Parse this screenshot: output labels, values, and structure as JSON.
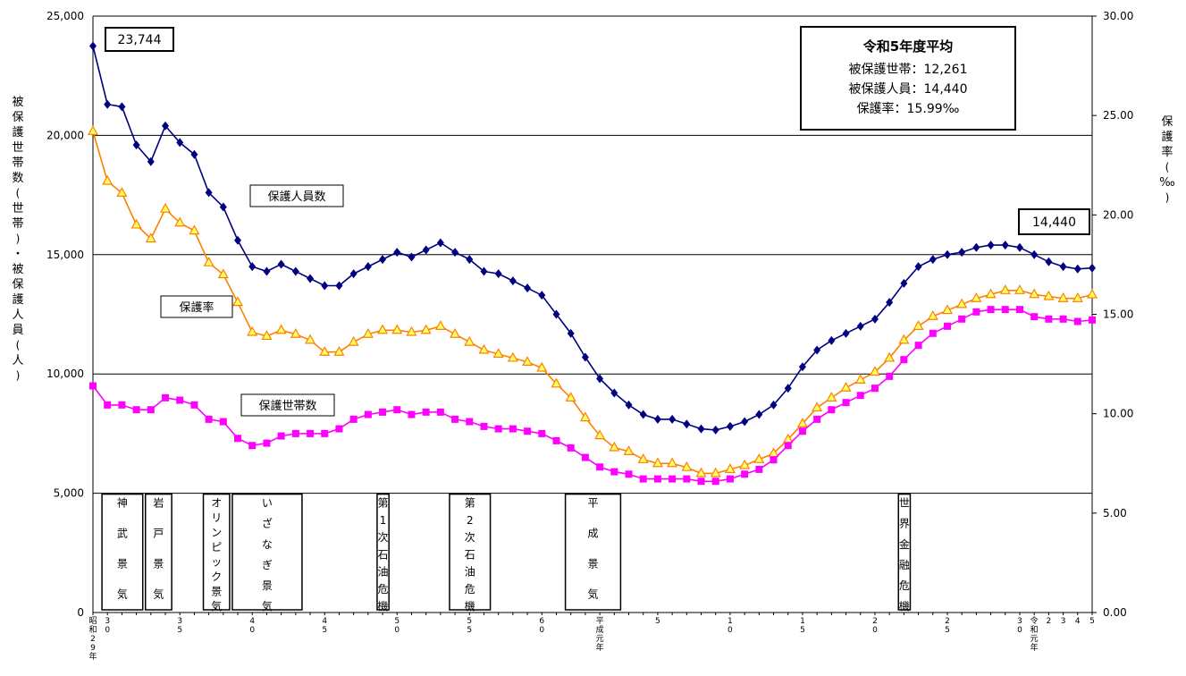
{
  "chart_data": {
    "type": "line",
    "y_left": {
      "label": "被保護世帯数(世帯)・被保護人員(人)",
      "ylim": [
        0,
        25000
      ],
      "ticks": [
        "0",
        "5,000",
        "10,000",
        "15,000",
        "20,000",
        "25,000"
      ]
    },
    "y_right": {
      "label": "保護率(‰)",
      "ylim": [
        0,
        30
      ],
      "ticks": [
        "0.00",
        "5.00",
        "10.00",
        "15.00",
        "20.00",
        "25.00",
        "30.00"
      ]
    },
    "x_ticks": [
      {
        "i": 0,
        "text": "昭和29年"
      },
      {
        "i": 1,
        "text": "30"
      },
      {
        "i": 6,
        "text": "35"
      },
      {
        "i": 11,
        "text": "40"
      },
      {
        "i": 16,
        "text": "45"
      },
      {
        "i": 21,
        "text": "50"
      },
      {
        "i": 26,
        "text": "55"
      },
      {
        "i": 31,
        "text": "60"
      },
      {
        "i": 35,
        "text": "平成元年"
      },
      {
        "i": 39,
        "text": "5"
      },
      {
        "i": 44,
        "text": "10"
      },
      {
        "i": 49,
        "text": "15"
      },
      {
        "i": 54,
        "text": "20"
      },
      {
        "i": 59,
        "text": "25"
      },
      {
        "i": 64,
        "text": "30"
      },
      {
        "i": 65,
        "text": "令和元年"
      },
      {
        "i": 66,
        "text": "2"
      },
      {
        "i": 67,
        "text": "3"
      },
      {
        "i": 68,
        "text": "4"
      },
      {
        "i": 69,
        "text": "5"
      }
    ],
    "series": [
      {
        "name": "保護人員数",
        "axis": "left",
        "color": "#000080",
        "marker": "diamond",
        "values": [
          23744,
          21300,
          21200,
          19600,
          18900,
          20400,
          19700,
          19200,
          17600,
          17000,
          15600,
          14500,
          14300,
          14600,
          14300,
          14000,
          13700,
          13700,
          14200,
          14500,
          14800,
          15100,
          14900,
          15200,
          15500,
          15100,
          14800,
          14300,
          14200,
          13900,
          13600,
          13300,
          12500,
          11700,
          10700,
          9800,
          9200,
          8700,
          8300,
          8100,
          8100,
          7900,
          7700,
          7650,
          7800,
          8000,
          8300,
          8700,
          9400,
          10300,
          11000,
          11400,
          11700,
          12000,
          12300,
          13000,
          13800,
          14500,
          14800,
          15000,
          15100,
          15300,
          15400,
          15400,
          15300,
          15000,
          14700,
          14500,
          14400,
          14440
        ]
      },
      {
        "name": "保護率",
        "axis": "right",
        "color": "#FF8000",
        "marker": "triangle",
        "values": [
          24.2,
          21.7,
          21.1,
          19.5,
          18.8,
          20.3,
          19.6,
          19.2,
          17.6,
          17.0,
          15.6,
          14.1,
          13.9,
          14.2,
          14.0,
          13.7,
          13.1,
          13.1,
          13.6,
          14.0,
          14.2,
          14.2,
          14.1,
          14.2,
          14.4,
          14.0,
          13.6,
          13.2,
          13.0,
          12.8,
          12.6,
          12.3,
          11.5,
          10.8,
          9.8,
          8.9,
          8.3,
          8.1,
          7.7,
          7.5,
          7.5,
          7.3,
          7.0,
          7.0,
          7.2,
          7.4,
          7.7,
          8.0,
          8.7,
          9.5,
          10.3,
          10.8,
          11.3,
          11.7,
          12.1,
          12.8,
          13.7,
          14.4,
          14.9,
          15.2,
          15.5,
          15.8,
          16.0,
          16.2,
          16.2,
          16.0,
          15.9,
          15.8,
          15.8,
          15.99
        ]
      },
      {
        "name": "保護世帯数",
        "axis": "left",
        "color": "#FF00FF",
        "marker": "square",
        "values": [
          9500,
          8700,
          8700,
          8500,
          8500,
          9000,
          8900,
          8700,
          8100,
          8000,
          7300,
          7000,
          7100,
          7400,
          7500,
          7500,
          7500,
          7700,
          8100,
          8300,
          8400,
          8500,
          8300,
          8400,
          8400,
          8100,
          8000,
          7800,
          7700,
          7700,
          7600,
          7500,
          7200,
          6900,
          6500,
          6100,
          5900,
          5800,
          5600,
          5600,
          5600,
          5600,
          5500,
          5500,
          5600,
          5800,
          6000,
          6400,
          7000,
          7600,
          8100,
          8500,
          8800,
          9100,
          9400,
          9900,
          10600,
          11200,
          11700,
          12000,
          12300,
          12600,
          12700,
          12700,
          12700,
          12400,
          12300,
          12300,
          12200,
          12261
        ]
      }
    ],
    "series_labels": [
      {
        "series": 0,
        "text": "保護人員数"
      },
      {
        "series": 1,
        "text": "保護率"
      },
      {
        "series": 2,
        "text": "保護世帯数"
      }
    ],
    "value_callouts": [
      {
        "text": "23,744"
      },
      {
        "text": "14,440"
      }
    ],
    "summary": {
      "title": "令和5年度平均",
      "lines": [
        "被保護世帯：12,261",
        "被保護人員：14,440",
        "保護率：15.99‰"
      ]
    },
    "periods": [
      {
        "start": 0.5,
        "end": 3.5,
        "text": "神武景気"
      },
      {
        "start": 3.5,
        "end": 5.5,
        "text": "岩戸景気"
      },
      {
        "start": 7.5,
        "end": 9.5,
        "text": "オリンピック景気"
      },
      {
        "start": 9.5,
        "end": 14.5,
        "text": "いざなぎ景気"
      },
      {
        "start": 19.5,
        "end": 20.5,
        "text": "第1次石油危機"
      },
      {
        "start": 24.5,
        "end": 27.5,
        "text": "第2次石油危機"
      },
      {
        "start": 32.5,
        "end": 36.5,
        "text": "平成景気"
      },
      {
        "start": 55.5,
        "end": 56.5,
        "text": "世界金融危機"
      }
    ]
  }
}
